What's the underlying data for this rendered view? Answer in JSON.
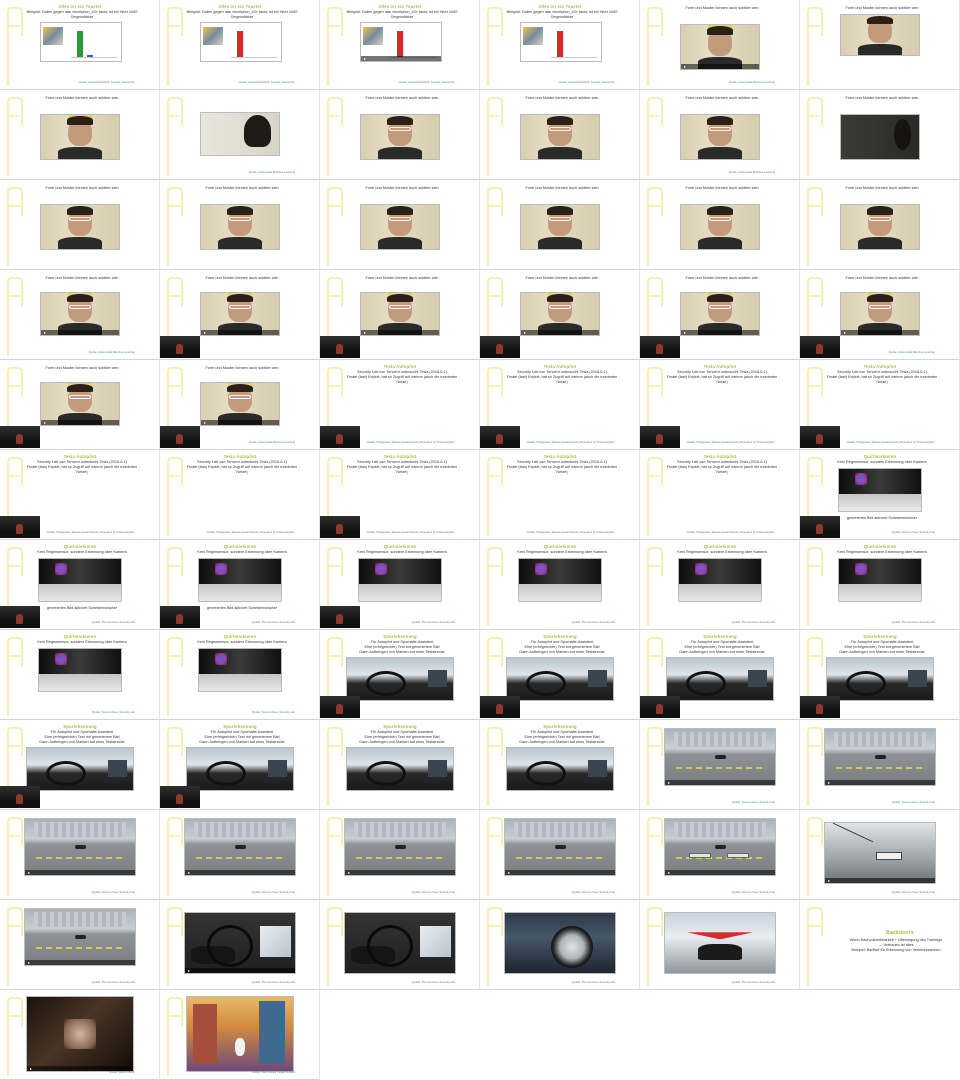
{
  "slides": [
    {
      "kind": "chart",
      "heading": "Alles ist ein Toaster",
      "bodyLines": [
        "Beispiel: Daten gegen das «Inception_v3» fasst, ist ein Wort 1000 Gegenstände"
      ],
      "source": "Quelle: Adversarial Patch (Google, Research)",
      "bars": [
        {
          "h": 26,
          "c": "#2a9a3a",
          "x": 36
        },
        {
          "h": 2,
          "c": "#3a5fc8",
          "x": 46
        }
      ]
    },
    {
      "kind": "chart",
      "heading": "Alles ist ein Toaster",
      "bodyLines": [
        "Beispiel: Daten gegen das «Inception_v3» fasst, ist ein Wort 1000 Gegenstände"
      ],
      "source": "Quelle: Adversarial Patch (Google, Research)",
      "bars": [
        {
          "h": 26,
          "c": "#d42a2a",
          "x": 36
        }
      ]
    },
    {
      "kind": "chart",
      "heading": "Alles ist ein Toaster",
      "bodyLines": [
        "Beispiel: Daten gegen das «Inception_v3» fasst, ist ein Wort 1000 Gegenstände"
      ],
      "source": "Quelle: Adversarial Patch (Google, Research)",
      "bars": [
        {
          "h": 26,
          "c": "#d42a2a",
          "x": 36
        }
      ],
      "video": true
    },
    {
      "kind": "chart",
      "heading": "Alles ist ein Toaster",
      "bodyLines": [
        "Beispiel: Daten gegen das «Inception_v3» fasst, ist ein Wort 1000 Gegenstände"
      ],
      "source": "Quelle: Adversarial Patch (Google, Research)",
      "bars": [
        {
          "h": 26,
          "c": "#d42a2a",
          "x": 36
        }
      ]
    },
    {
      "kind": "face",
      "heading": "",
      "bodyLines": [
        "Form und Muster können auch subtiler sein"
      ],
      "source": "Quelle: Adversarial Machine Learning",
      "mediaBox": [
        40,
        24,
        80,
        46
      ],
      "variant": "band",
      "video": true
    },
    {
      "kind": "face",
      "heading": "",
      "bodyLines": [
        "Form und Muster können auch subtiler sein"
      ],
      "source": "",
      "mediaBox": [
        40,
        14,
        80,
        42
      ],
      "variant": "plain"
    },
    {
      "kind": "face",
      "heading": "",
      "bodyLines": [
        "Form und Muster können auch subtiler sein"
      ],
      "source": "",
      "mediaBox": [
        40,
        24,
        80,
        46
      ],
      "variant": "band"
    },
    {
      "kind": "back",
      "heading": "",
      "bodyLines": [],
      "source": "Quelle: Adversarial Machine Learning",
      "mediaBox": [
        40,
        22,
        80,
        44
      ]
    },
    {
      "kind": "face",
      "heading": "",
      "bodyLines": [
        "Form und Muster können auch subtiler sein"
      ],
      "source": "",
      "mediaBox": [
        40,
        24,
        80,
        46
      ],
      "variant": "glasses"
    },
    {
      "kind": "face",
      "heading": "",
      "bodyLines": [
        "Form und Muster können auch subtiler sein"
      ],
      "source": "",
      "mediaBox": [
        40,
        24,
        80,
        46
      ],
      "variant": "glasses"
    },
    {
      "kind": "face",
      "heading": "",
      "bodyLines": [
        "Form und Muster können auch subtiler sein"
      ],
      "source": "Quelle: Adversarial Machine Learning",
      "mediaBox": [
        40,
        24,
        80,
        46
      ],
      "variant": "glasses"
    },
    {
      "kind": "dark",
      "heading": "",
      "bodyLines": [
        "Form und Muster können auch subtiler sein"
      ],
      "source": "",
      "mediaBox": [
        40,
        24,
        80,
        46
      ]
    },
    {
      "kind": "face",
      "heading": "",
      "bodyLines": [
        "Form und Muster können auch subtiler sein"
      ],
      "source": "",
      "mediaBox": [
        40,
        24,
        80,
        46
      ],
      "variant": "glasses"
    },
    {
      "kind": "face",
      "heading": "",
      "bodyLines": [
        "Form und Muster können auch subtiler sein"
      ],
      "source": "",
      "mediaBox": [
        40,
        24,
        80,
        46
      ],
      "variant": "glasses"
    },
    {
      "kind": "face",
      "heading": "",
      "bodyLines": [
        "Form und Muster können auch subtiler sein"
      ],
      "source": "",
      "mediaBox": [
        40,
        24,
        80,
        46
      ],
      "variant": "glasses"
    },
    {
      "kind": "face",
      "heading": "",
      "bodyLines": [
        "Form und Muster können auch subtiler sein"
      ],
      "source": "",
      "mediaBox": [
        40,
        24,
        80,
        46
      ],
      "variant": "glasses"
    },
    {
      "kind": "face",
      "heading": "",
      "bodyLines": [
        "Form und Muster können auch subtiler sein"
      ],
      "source": "",
      "mediaBox": [
        40,
        24,
        80,
        46
      ],
      "variant": "glasses"
    },
    {
      "kind": "face",
      "heading": "",
      "bodyLines": [
        "Form und Muster können auch subtiler sein"
      ],
      "source": "",
      "mediaBox": [
        40,
        24,
        80,
        46
      ],
      "variant": "glasses"
    },
    {
      "kind": "face",
      "heading": "",
      "bodyLines": [
        "Form und Muster können auch subtiler sein"
      ],
      "source": "Quelle: Adversarial Machine Learning",
      "mediaBox": [
        40,
        22,
        80,
        44
      ],
      "variant": "glassband",
      "video": true
    },
    {
      "kind": "face",
      "heading": "",
      "bodyLines": [
        "Form und Muster können auch subtiler sein"
      ],
      "source": "",
      "mediaBox": [
        40,
        22,
        80,
        44
      ],
      "variant": "glassband",
      "video": true,
      "pip": true
    },
    {
      "kind": "face",
      "heading": "",
      "bodyLines": [
        "Form und Muster können auch subtiler sein"
      ],
      "source": "",
      "mediaBox": [
        40,
        22,
        80,
        44
      ],
      "variant": "glassband",
      "video": true,
      "pip": true
    },
    {
      "kind": "face",
      "heading": "",
      "bodyLines": [
        "Form und Muster können auch subtiler sein"
      ],
      "source": "",
      "mediaBox": [
        40,
        22,
        80,
        44
      ],
      "variant": "glassband",
      "video": true,
      "pip": true
    },
    {
      "kind": "face",
      "heading": "",
      "bodyLines": [
        "Form und Muster können auch subtiler sein"
      ],
      "source": "",
      "mediaBox": [
        40,
        22,
        80,
        44
      ],
      "variant": "glassband",
      "video": true,
      "pip": true
    },
    {
      "kind": "face",
      "heading": "",
      "bodyLines": [
        "Form und Muster können auch subtiler sein"
      ],
      "source": "Quelle: Adversarial Machine Learning",
      "mediaBox": [
        40,
        22,
        80,
        44
      ],
      "variant": "glassband",
      "video": true,
      "pip": true
    },
    {
      "kind": "face",
      "heading": "",
      "bodyLines": [
        "Form und Muster können auch subtiler sein"
      ],
      "source": "",
      "mediaBox": [
        40,
        22,
        80,
        44
      ],
      "variant": "glassband",
      "video": true,
      "pip": true
    },
    {
      "kind": "face",
      "heading": "",
      "bodyLines": [
        "Form und Muster können auch subtiler sein"
      ],
      "source": "Quelle: Adversarial Machine Learning",
      "mediaBox": [
        40,
        22,
        80,
        44
      ],
      "variant": "glassband",
      "video": true,
      "pip": true
    },
    {
      "kind": "text",
      "heading": "Tesla Autopilot",
      "bodyLines": [
        "Security Lab von Tencent untersucht Tesla (2018-6.1)",
        "Findet (fast) Exploit; hat so Zugriff auf interne (auch die trainierten Netze)"
      ],
      "source": "Quelle: Whitepaper „Experimental Security Research of Tesla Autopilot“",
      "pip": true
    },
    {
      "kind": "text",
      "heading": "Tesla Autopilot",
      "bodyLines": [
        "Security Lab von Tencent untersucht Tesla (2018-6.1)",
        "Findet (fast) Exploit; hat so Zugriff auf interne (auch die trainierten Netze)"
      ],
      "source": "Quelle: Whitepaper „Experimental Security Research of Tesla Autopilot“",
      "pip": true
    },
    {
      "kind": "text",
      "heading": "Tesla Autopilot",
      "bodyLines": [
        "Security Lab von Tencent untersucht Tesla (2018-6.1)",
        "Findet (fast) Exploit; hat so Zugriff auf interne (auch die trainierten Netze)"
      ],
      "source": "Quelle: Whitepaper „Experimental Security Research of Tesla Autopilot“",
      "pip": true
    },
    {
      "kind": "text",
      "heading": "Tesla Autopilot",
      "bodyLines": [
        "Security Lab von Tencent untersucht Tesla (2018-6.1)",
        "Findet (fast) Exploit; hat so Zugriff auf interne (auch die trainierten Netze)"
      ],
      "source": "Quelle: Whitepaper „Experimental Security Research of Tesla Autopilot“",
      "pip": true
    },
    {
      "kind": "text",
      "heading": "Tesla Autopilot",
      "bodyLines": [
        "Security Lab von Tencent untersucht Tesla (2018-6.1)",
        "Findet (fast) Exploit; hat so Zugriff auf interne (auch die trainierten Netze)"
      ],
      "source": "Quelle: Whitepaper „Experimental Security Research of Tesla Autopilot“",
      "pip": true
    },
    {
      "kind": "text",
      "heading": "Tesla Autopilot",
      "bodyLines": [
        "Security Lab von Tencent untersucht Tesla (2018-6.1)",
        "Findet (fast) Exploit; hat so Zugriff auf interne (auch die trainierten Netze)"
      ],
      "source": "Quelle: Whitepaper „Experimental Security Research of Tesla Autopilot“",
      "pip": false
    },
    {
      "kind": "text",
      "heading": "Tesla Autopilot",
      "bodyLines": [
        "Security Lab von Tencent untersucht Tesla (2018-6.1)",
        "Findet (fast) Exploit; hat so Zugriff auf interne (auch die trainierten Netze)"
      ],
      "source": "Quelle: Whitepaper „Experimental Security Research of Tesla Autopilot“",
      "pip": true
    },
    {
      "kind": "text",
      "heading": "Tesla Autopilot",
      "bodyLines": [
        "Security Lab von Tencent untersucht Tesla (2018-6.1)",
        "Findet (fast) Exploit; hat so Zugriff auf interne (auch die trainierten Netze)"
      ],
      "source": "Quelle: Whitepaper „Experimental Security Research of Tesla Autopilot“",
      "pip": false
    },
    {
      "kind": "text",
      "heading": "Tesla Autopilot",
      "bodyLines": [
        "Security Lab von Tencent untersucht Tesla (2018-6.1)",
        "Findet (fast) Exploit; hat so Zugriff auf interne (auch die trainierten Netze)"
      ],
      "source": "Quelle: Whitepaper „Experimental Security Research of Tesla Autopilot“",
      "pip": false
    },
    {
      "kind": "mark",
      "heading": "Quirlmarkieren",
      "bodyLines": [
        "Kein Regensensor, sondern Erkennung über Kamera"
      ],
      "caption": "generiertes Bild aktiviert Scheibenwischer",
      "source": "Quelle: Tencent Keen Security Lab",
      "pip": true
    },
    {
      "kind": "mark",
      "heading": "Quirlmarkieren",
      "bodyLines": [
        "Kein Regensensor, sondern Erkennung über Kamera"
      ],
      "caption": "generiertes Bild aktiviert Scheibenwischer",
      "source": "Quelle: Tencent Keen Security Lab",
      "pip": true
    },
    {
      "kind": "mark",
      "heading": "Quirlmarkieren",
      "bodyLines": [
        "Kein Regensensor, sondern Erkennung über Kamera"
      ],
      "caption": "generiertes Bild aktiviert Scheibenwischer",
      "source": "Quelle: Tencent Keen Security Lab",
      "pip": true
    },
    {
      "kind": "mark",
      "heading": "Quirlmarkieren",
      "bodyLines": [
        "Kein Regensensor, sondern Erkennung über Kamera"
      ],
      "caption": "",
      "source": "Quelle: Tencent Keen Security Lab",
      "pip": true
    },
    {
      "kind": "mark",
      "heading": "Quirlmarkieren",
      "bodyLines": [
        "Kein Regensensor, sondern Erkennung über Kamera"
      ],
      "caption": "",
      "source": "Quelle: Tencent Keen Security Lab",
      "pip": false
    },
    {
      "kind": "mark",
      "heading": "Quirlmarkieren",
      "bodyLines": [
        "Kein Regensensor, sondern Erkennung über Kamera"
      ],
      "caption": "",
      "source": "Quelle: Tencent Keen Security Lab",
      "pip": false
    },
    {
      "kind": "mark",
      "heading": "Quirlmarkieren",
      "bodyLines": [
        "Kein Regensensor, sondern Erkennung über Kamera"
      ],
      "caption": "",
      "source": "Quelle: Tencent Keen Security Lab",
      "pip": false
    },
    {
      "kind": "mark",
      "heading": "Quirlmarkieren",
      "bodyLines": [
        "Kein Regensensor, sondern Erkennung über Kamera"
      ],
      "caption": "",
      "source": "Quelle: Tencent Keen Security Lab",
      "pip": false
    },
    {
      "kind": "mark",
      "heading": "Quirlmarkieren",
      "bodyLines": [
        "Kein Regensensor, sondern Erkennung über Kamera"
      ],
      "caption": "",
      "source": "Quelle: Tencent Keen Security Lab",
      "pip": false
    },
    {
      "kind": "cabin",
      "heading": "Spurerkennung",
      "bodyLines": [
        "Für Autopilot und Spurhalte-Assistent",
        "Eine (erfolgreicher) Test mit generiertem Bild",
        "Dann Aufbringen von Marken auf einer Teststrecke"
      ],
      "source": "",
      "pip": true
    },
    {
      "kind": "cabin",
      "heading": "Spurerkennung",
      "bodyLines": [
        "Für Autopilot und Spurhalte-Assistent",
        "Eine (erfolgreicher) Test mit generiertem Bild",
        "Dann Aufbringen von Marken auf einer Teststrecke"
      ],
      "source": "",
      "pip": true
    },
    {
      "kind": "cabin",
      "heading": "Spurerkennung",
      "bodyLines": [
        "Für Autopilot und Spurhalte-Assistent",
        "Eine (erfolgreicher) Test mit generiertem Bild",
        "Dann Aufbringen von Marken auf einer Teststrecke"
      ],
      "source": "",
      "pip": true
    },
    {
      "kind": "cabin",
      "heading": "Spurerkennung",
      "bodyLines": [
        "Für Autopilot und Spurhalte-Assistent",
        "Eine (erfolgreicher) Test mit generiertem Bild",
        "Dann Aufbringen von Marken auf einer Teststrecke"
      ],
      "source": "",
      "pip": true
    },
    {
      "kind": "cabin",
      "heading": "Spurerkennung",
      "bodyLines": [
        "Für Autopilot und Spurhalte-Assistent",
        "Eine (erfolgreicher) Test mit generiertem Bild",
        "Dann Aufbringen von Marken auf einer Teststrecke"
      ],
      "source": "",
      "pip": true
    },
    {
      "kind": "cabin",
      "heading": "Spurerkennung",
      "bodyLines": [
        "Für Autopilot und Spurhalte-Assistent",
        "Eine (erfolgreicher) Test mit generiertem Bild",
        "Dann Aufbringen von Marken auf einer Teststrecke"
      ],
      "source": "",
      "pip": true
    },
    {
      "kind": "cabin",
      "heading": "Spurerkennung",
      "bodyLines": [
        "Für Autopilot und Spurhalte-Assistent",
        "Eine (erfolgreicher) Test mit generiertem Bild",
        "Dann Aufbringen von Marken auf einer Teststrecke"
      ],
      "source": "",
      "pip": false
    },
    {
      "kind": "cabin",
      "heading": "Spurerkennung",
      "bodyLines": [
        "Für Autopilot und Spurhalte-Assistent",
        "Eine (erfolgreicher) Test mit generiertem Bild",
        "Dann Aufbringen von Marken auf einer Teststrecke"
      ],
      "source": "",
      "pip": false
    },
    {
      "kind": "lot",
      "heading": "",
      "bodyLines": [],
      "source": "Quelle: Tencent Keen Security Lab",
      "pads": 0,
      "video": true
    },
    {
      "kind": "lot",
      "heading": "",
      "bodyLines": [],
      "source": "Quelle: Tencent Keen Security Lab",
      "pads": 0,
      "video": true
    },
    {
      "kind": "lot",
      "heading": "",
      "bodyLines": [],
      "source": "Quelle: Tencent Keen Security Lab",
      "pads": 0,
      "video": true
    },
    {
      "kind": "lot",
      "heading": "",
      "bodyLines": [],
      "source": "Quelle: Tencent Keen Security Lab",
      "pads": 0,
      "video": true
    },
    {
      "kind": "lot",
      "heading": "",
      "bodyLines": [],
      "source": "Quelle: Tencent Keen Security Lab",
      "pads": 0,
      "video": true
    },
    {
      "kind": "lot",
      "heading": "",
      "bodyLines": [],
      "source": "Quelle: Tencent Keen Security Lab",
      "pads": 0,
      "video": true
    },
    {
      "kind": "lot",
      "heading": "",
      "bodyLines": [],
      "source": "Quelle: Tencent Keen Security Lab",
      "pads": 2,
      "video": true
    },
    {
      "kind": "closeup",
      "heading": "",
      "bodyLines": [],
      "source": "Quelle: Tencent Keen Security Lab",
      "video": true
    },
    {
      "kind": "lot",
      "heading": "",
      "bodyLines": [],
      "source": "Quelle: Tencent Keen Security Lab",
      "pads": 0,
      "video": true
    },
    {
      "kind": "driver",
      "heading": "",
      "bodyLines": [],
      "source": "Quelle: Tencent Keen Security Lab",
      "video": true
    },
    {
      "kind": "driver",
      "heading": "",
      "bodyLines": [],
      "source": "Quelle: Tencent Keen Security Lab",
      "video": false
    },
    {
      "kind": "tire",
      "heading": "",
      "bodyLines": [],
      "source": "Quelle: Tencent Keen Security Lab",
      "video": false
    },
    {
      "kind": "red",
      "heading": "",
      "bodyLines": [],
      "source": "Quelle: Tencent Keen Security Lab",
      "video": false
    },
    {
      "kind": "text",
      "heading": "Backdoors",
      "bodyLines": [
        "Worin Nachvollziehbarkeit + Offenlegung des Trainings",
        "→ Vertrauen ist alles",
        "Beispiel: BadNet für Erkennung von Verkehrszeichen"
      ],
      "source": "",
      "pip": false,
      "big": true
    },
    {
      "kind": "shadow",
      "heading": "",
      "bodyLines": [],
      "source": "Quelle: Warner Bros.",
      "video": true
    },
    {
      "kind": "city",
      "heading": "",
      "bodyLines": [],
      "source": "Quelle: Walt Disney Image Studios",
      "video": false
    }
  ],
  "colors": {
    "accent": "#9ac23c",
    "link": "#5a7ea8"
  }
}
